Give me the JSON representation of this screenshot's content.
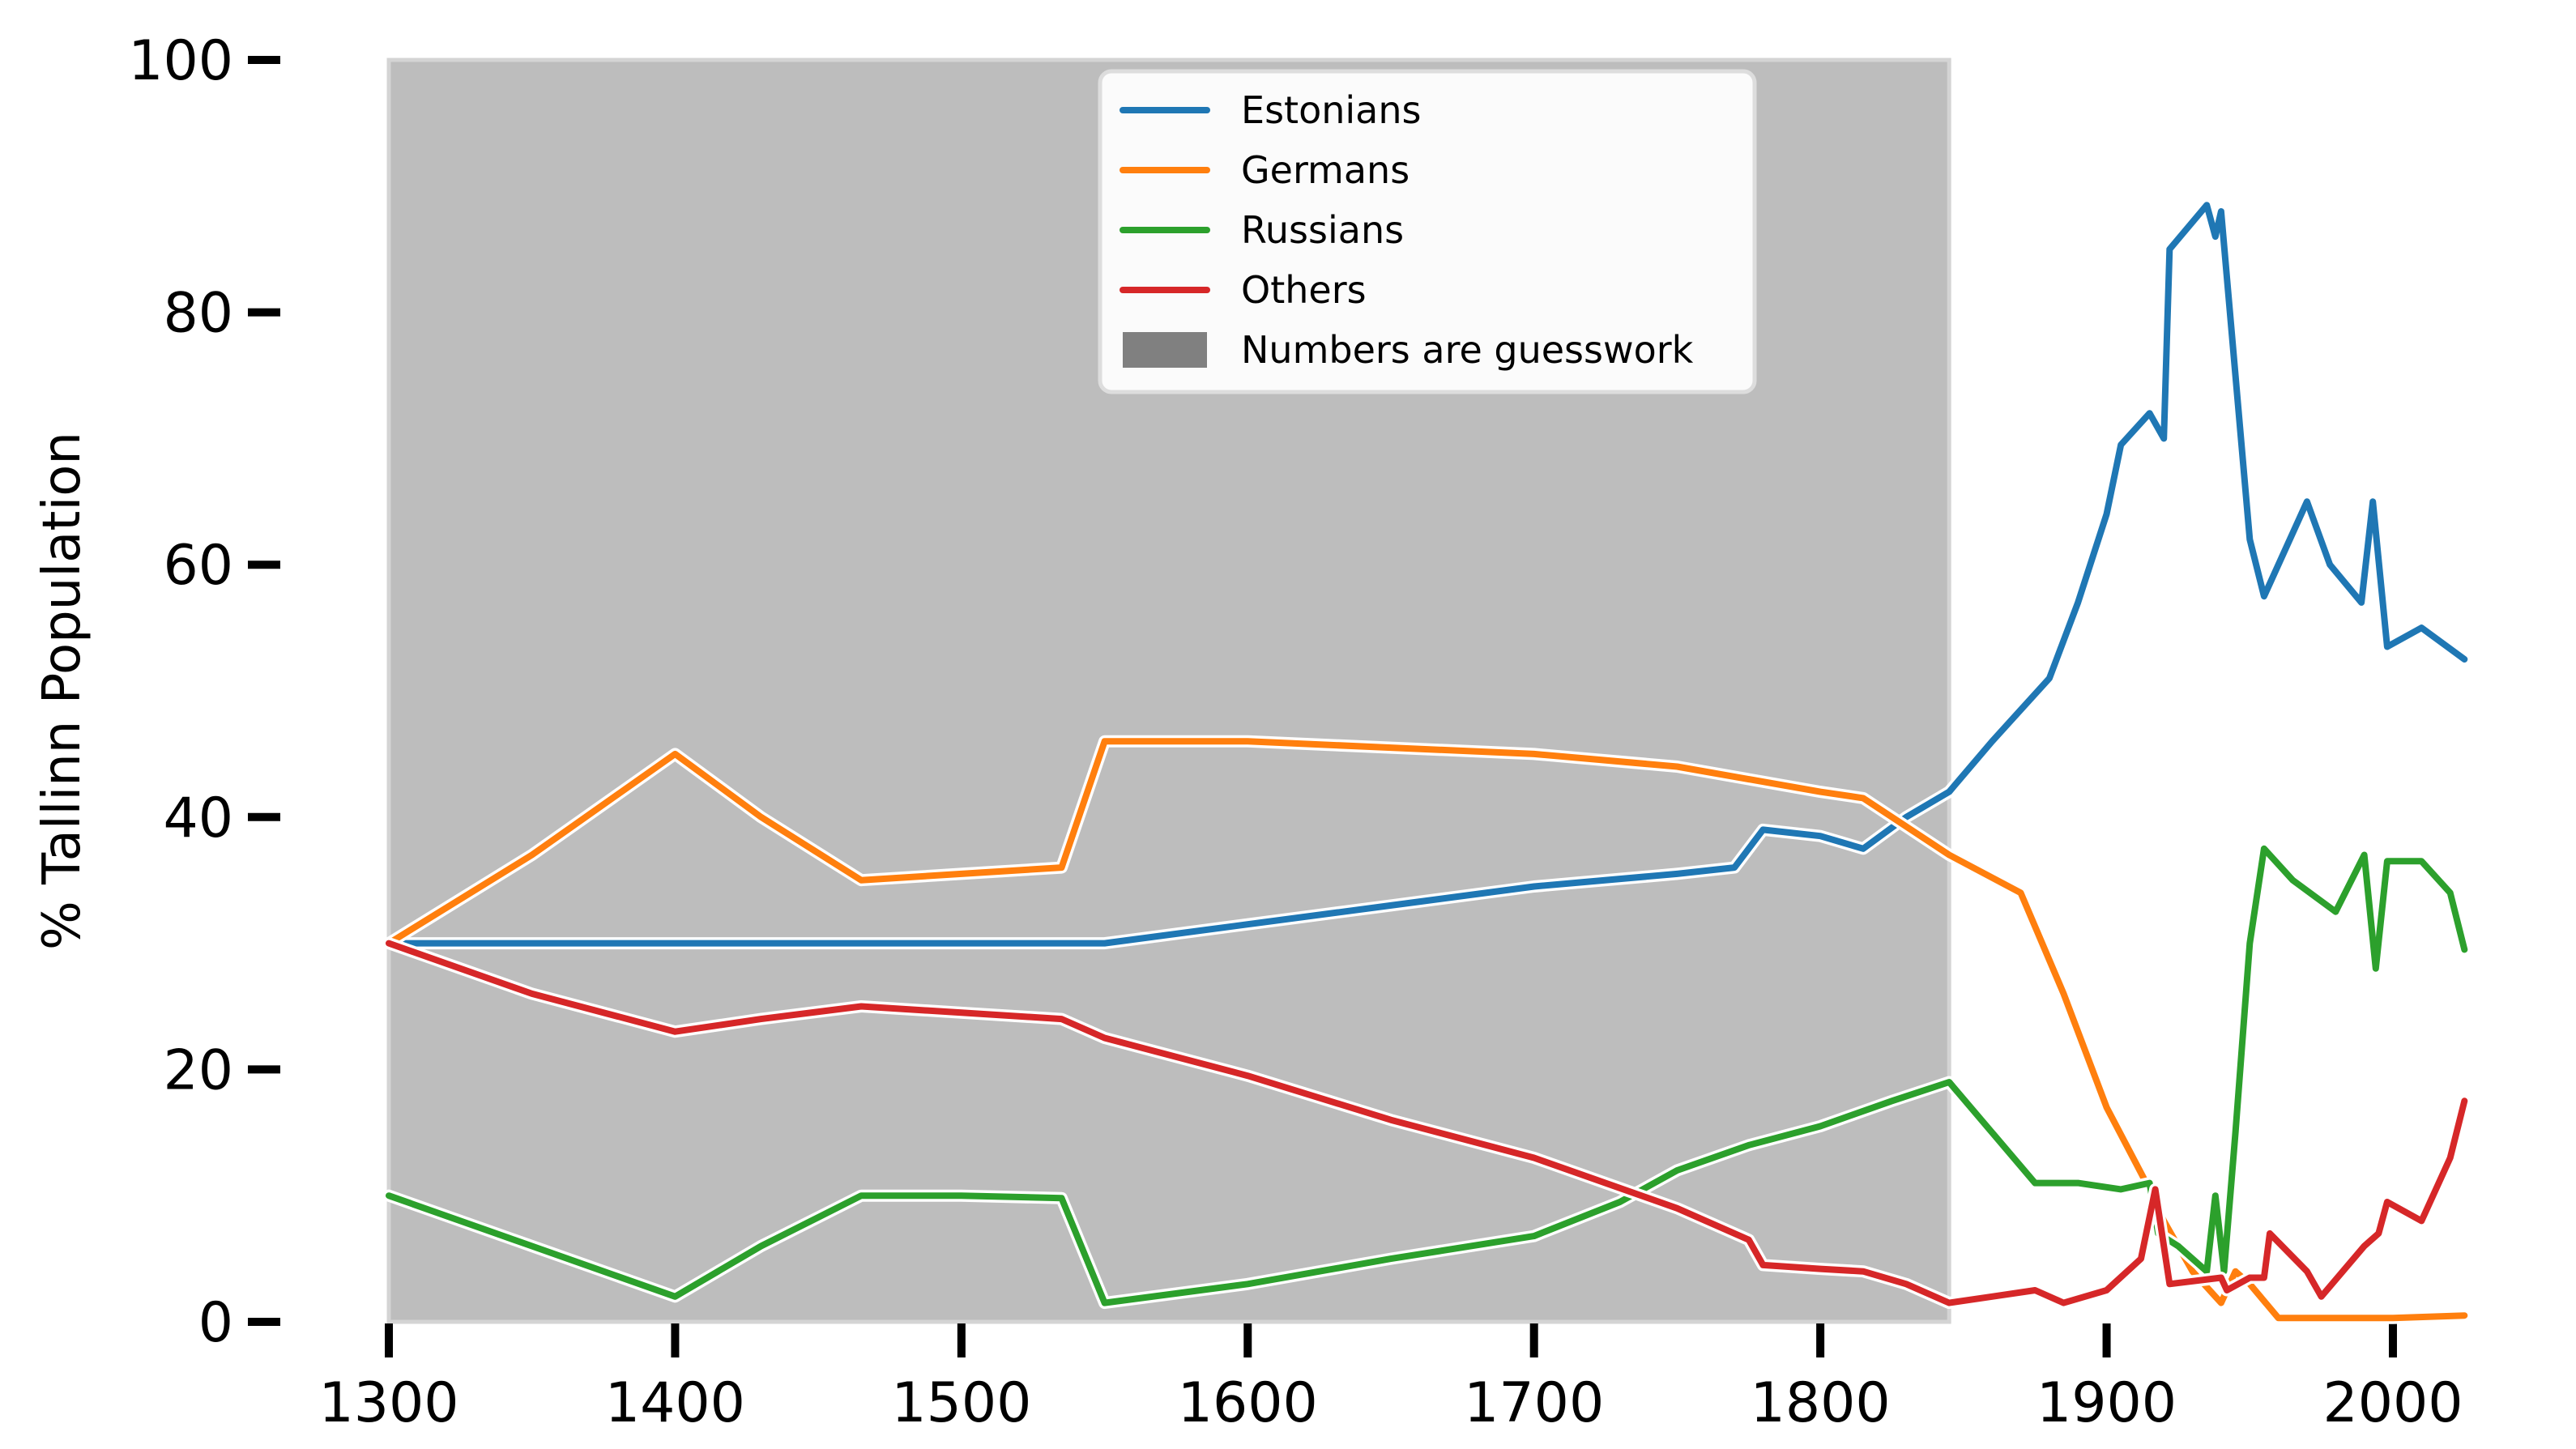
{
  "chart_data": {
    "type": "line",
    "title": "",
    "xlabel": "",
    "ylabel": "% Tallinn Population",
    "xlim": [
      1300,
      2030
    ],
    "ylim": [
      0,
      100
    ],
    "xticks": [
      1300,
      1400,
      1500,
      1600,
      1700,
      1800,
      1900,
      2000
    ],
    "yticks": [
      0,
      20,
      40,
      60,
      80,
      100
    ],
    "grid": false,
    "legend_position": "top-center",
    "shaded_region": {
      "x_start": 1300,
      "x_end": 1845,
      "label": "Numbers are guesswork",
      "color": "#bdbdbd"
    },
    "series": [
      {
        "name": "Estonians",
        "color": "#1f77b4",
        "points": [
          [
            1300,
            30
          ],
          [
            1350,
            30
          ],
          [
            1400,
            30
          ],
          [
            1450,
            30
          ],
          [
            1500,
            30
          ],
          [
            1550,
            30
          ],
          [
            1600,
            31.5
          ],
          [
            1650,
            33
          ],
          [
            1700,
            34.5
          ],
          [
            1750,
            35.5
          ],
          [
            1770,
            36
          ],
          [
            1780,
            39
          ],
          [
            1800,
            38.5
          ],
          [
            1815,
            37.5
          ],
          [
            1830,
            40
          ],
          [
            1845,
            42
          ],
          [
            1860,
            46
          ],
          [
            1880,
            51
          ],
          [
            1890,
            57
          ],
          [
            1900,
            64
          ],
          [
            1905,
            69.5
          ],
          [
            1915,
            72
          ],
          [
            1920,
            70
          ],
          [
            1922,
            85
          ],
          [
            1935,
            88.5
          ],
          [
            1938,
            86
          ],
          [
            1940,
            88
          ],
          [
            1945,
            75
          ],
          [
            1950,
            62
          ],
          [
            1955,
            57.5
          ],
          [
            1960,
            60
          ],
          [
            1970,
            65
          ],
          [
            1978,
            60
          ],
          [
            1989,
            57
          ],
          [
            1993,
            65
          ],
          [
            1998,
            53.5
          ],
          [
            2010,
            55
          ],
          [
            2025,
            52.5
          ]
        ]
      },
      {
        "name": "Germans",
        "color": "#ff7f0e",
        "points": [
          [
            1300,
            30
          ],
          [
            1350,
            37
          ],
          [
            1400,
            45
          ],
          [
            1430,
            40
          ],
          [
            1465,
            35
          ],
          [
            1500,
            35.5
          ],
          [
            1535,
            36
          ],
          [
            1550,
            46
          ],
          [
            1600,
            46
          ],
          [
            1650,
            45.5
          ],
          [
            1700,
            45
          ],
          [
            1750,
            44
          ],
          [
            1800,
            42
          ],
          [
            1815,
            41.5
          ],
          [
            1845,
            37
          ],
          [
            1870,
            34
          ],
          [
            1885,
            26
          ],
          [
            1900,
            17
          ],
          [
            1915,
            10.5
          ],
          [
            1920,
            8
          ],
          [
            1930,
            4
          ],
          [
            1938,
            2
          ],
          [
            1940,
            1.5
          ],
          [
            1945,
            4
          ],
          [
            1950,
            3
          ],
          [
            1960,
            0.3
          ],
          [
            2000,
            0.3
          ],
          [
            2025,
            0.5
          ]
        ]
      },
      {
        "name": "Russians",
        "color": "#2ca02c",
        "points": [
          [
            1300,
            10
          ],
          [
            1350,
            6
          ],
          [
            1400,
            2
          ],
          [
            1430,
            6
          ],
          [
            1465,
            10
          ],
          [
            1500,
            10
          ],
          [
            1535,
            9.8
          ],
          [
            1550,
            1.5
          ],
          [
            1600,
            3
          ],
          [
            1650,
            5
          ],
          [
            1700,
            6.8
          ],
          [
            1730,
            9.5
          ],
          [
            1750,
            12
          ],
          [
            1775,
            14
          ],
          [
            1800,
            15.5
          ],
          [
            1825,
            17.5
          ],
          [
            1845,
            19
          ],
          [
            1860,
            15
          ],
          [
            1875,
            11
          ],
          [
            1890,
            11
          ],
          [
            1905,
            10.5
          ],
          [
            1915,
            11
          ],
          [
            1918,
            7
          ],
          [
            1925,
            6
          ],
          [
            1935,
            4
          ],
          [
            1938,
            10
          ],
          [
            1941,
            4
          ],
          [
            1945,
            15
          ],
          [
            1950,
            30
          ],
          [
            1955,
            37.5
          ],
          [
            1965,
            35
          ],
          [
            1980,
            32.5
          ],
          [
            1990,
            37
          ],
          [
            1994,
            28
          ],
          [
            1998,
            36.5
          ],
          [
            2010,
            36.5
          ],
          [
            2020,
            34
          ],
          [
            2025,
            29.5
          ]
        ]
      },
      {
        "name": "Others",
        "color": "#d62728",
        "points": [
          [
            1300,
            30
          ],
          [
            1350,
            26
          ],
          [
            1400,
            23
          ],
          [
            1430,
            24
          ],
          [
            1465,
            25
          ],
          [
            1500,
            24.5
          ],
          [
            1535,
            24
          ],
          [
            1550,
            22.5
          ],
          [
            1600,
            19.5
          ],
          [
            1650,
            16
          ],
          [
            1700,
            13
          ],
          [
            1750,
            9
          ],
          [
            1775,
            6.5
          ],
          [
            1780,
            4.5
          ],
          [
            1800,
            4.2
          ],
          [
            1815,
            4
          ],
          [
            1830,
            3
          ],
          [
            1845,
            1.5
          ],
          [
            1860,
            2
          ],
          [
            1875,
            2.5
          ],
          [
            1885,
            1.5
          ],
          [
            1900,
            2.5
          ],
          [
            1912,
            5
          ],
          [
            1917,
            10.5
          ],
          [
            1922,
            3
          ],
          [
            1940,
            3.5
          ],
          [
            1942,
            2.5
          ],
          [
            1950,
            3.5
          ],
          [
            1955,
            3.5
          ],
          [
            1957,
            7
          ],
          [
            1970,
            4
          ],
          [
            1975,
            2
          ],
          [
            1990,
            6
          ],
          [
            1995,
            7
          ],
          [
            1998,
            9.5
          ],
          [
            2010,
            8
          ],
          [
            2020,
            13
          ],
          [
            2025,
            17.5
          ]
        ]
      }
    ]
  }
}
